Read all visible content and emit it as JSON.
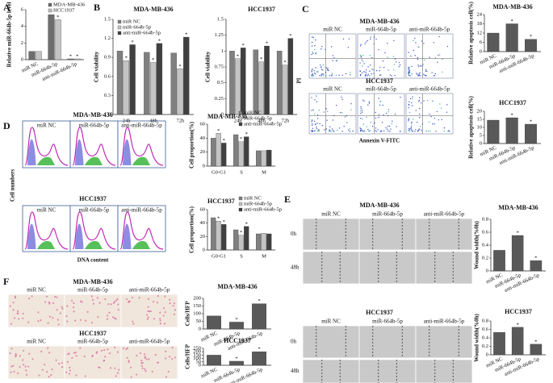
{
  "letters": [
    "A",
    "B",
    "C",
    "D",
    "E",
    "F"
  ],
  "image_panels": [
    {
      "titles": [
        "MDA-MB-436",
        "HCC1937"
      ],
      "columns": [
        "miR NC",
        "miR-664b-5p",
        "anti-miR-664b-5p"
      ],
      "ylabel": "PI",
      "xlabel": "Annexin V-FITC"
    },
    {
      "titles": [
        "MDA-MB-436",
        "HCC1937"
      ],
      "columns": [
        "miR NC",
        "miR-664b-5p",
        "anti-miR-664b-5p"
      ],
      "ylabel": "Cell numbers",
      "xlabel": "DNA content"
    },
    {
      "titles": [
        "MDA-MB-436",
        "HCC1937"
      ],
      "columns": [
        "miR NC",
        "miR-664b-5p",
        "anti-miR-664b-5p"
      ],
      "rows": [
        "0h",
        "48h"
      ]
    },
    {
      "titles": [
        "MDA-MB-436",
        "HCC1937"
      ],
      "columns": [
        "miR NC",
        "miR-664b-5p",
        "anti-miR-664b-5p"
      ]
    }
  ],
  "chart_data": [
    {
      "type": "bar",
      "ylabel": "Relative miR-664b-5p level",
      "categories": [
        "miR NC",
        "miR-664b-5p",
        "anti-miR-664b-5p"
      ],
      "series": [
        {
          "name": "MDA-MB-436",
          "color": "#6d6d6d",
          "values": [
            1,
            5.4,
            0.1
          ]
        },
        {
          "name": "HCC1937",
          "color": "#c4c4c4",
          "values": [
            1,
            4.8,
            0.1
          ]
        }
      ],
      "ylim": [
        0,
        6
      ],
      "yticks": [
        0,
        2,
        4,
        6
      ],
      "annotations": [
        {
          "text": "*",
          "series": 0,
          "index": 1
        },
        {
          "text": "*",
          "series": 1,
          "index": 1
        },
        {
          "text": "*",
          "series": 0,
          "index": 2
        },
        {
          "text": "*",
          "series": 1,
          "index": 2
        }
      ]
    },
    {
      "type": "bar",
      "title": "MDA-MB-436",
      "ylabel": "Cell viability",
      "categories": [
        "24h",
        "48h",
        "72h"
      ],
      "series": [
        {
          "name": "miR NC",
          "color": "#808080",
          "values": [
            1.0,
            0.98,
            0.97
          ]
        },
        {
          "name": "miR-664b-5p",
          "color": "#c4c4c4",
          "values": [
            0.85,
            0.82,
            0.72
          ]
        },
        {
          "name": "anti-miR-664b-5p",
          "color": "#404040",
          "values": [
            1.1,
            1.12,
            1.22
          ]
        }
      ],
      "ylim": [
        0,
        1.5
      ],
      "yticks": [
        0,
        0.3,
        0.6,
        0.9,
        1.2,
        1.5
      ],
      "annotations": [
        {
          "text": "*",
          "series": 1,
          "index": 0
        },
        {
          "text": "*",
          "series": 1,
          "index": 1
        },
        {
          "text": "*",
          "series": 1,
          "index": 2
        },
        {
          "text": "*",
          "series": 2,
          "index": 0
        },
        {
          "text": "*",
          "series": 2,
          "index": 1
        },
        {
          "text": "*",
          "series": 2,
          "index": 2
        }
      ]
    },
    {
      "type": "bar",
      "title": "HCC1937",
      "ylabel": "Cell viability",
      "categories": [
        "24h",
        "48h",
        "72h"
      ],
      "series": [
        {
          "name": "miR NC",
          "color": "#808080",
          "values": [
            1.0,
            1.02,
            1.0
          ]
        },
        {
          "name": "miR-664b-5p",
          "color": "#c4c4c4",
          "values": [
            0.88,
            0.83,
            0.78
          ]
        },
        {
          "name": "anti-miR-664b-5p",
          "color": "#404040",
          "values": [
            1.05,
            1.08,
            1.2
          ]
        }
      ],
      "ylim": [
        0,
        1.5
      ],
      "yticks": [
        0,
        0.25,
        0.5,
        0.75,
        1,
        1.25,
        1.5
      ],
      "annotations": [
        {
          "text": "*",
          "series": 1,
          "index": 0
        },
        {
          "text": "*",
          "series": 1,
          "index": 1
        },
        {
          "text": "*",
          "series": 1,
          "index": 2
        },
        {
          "text": "*",
          "series": 2,
          "index": 0
        },
        {
          "text": "*",
          "series": 2,
          "index": 1
        },
        {
          "text": "*",
          "series": 2,
          "index": 2
        }
      ]
    },
    {
      "type": "bar",
      "title": "MDA-MB-436",
      "ylabel": "Relative apoptosis cell(%)",
      "categories": [
        "miR NC",
        "miR-664b-5p",
        "anti-miR-664b-5p"
      ],
      "values": [
        12,
        18,
        8
      ],
      "color": "#595959",
      "ylim": [
        0,
        24
      ],
      "yticks": [
        0,
        6,
        12,
        18,
        24
      ],
      "annotations": [
        {
          "text": "*",
          "index": 1
        },
        {
          "text": "*",
          "index": 2
        }
      ]
    },
    {
      "type": "bar",
      "title": "HCC1937",
      "ylabel": "Relative apoptosis cell(%)",
      "categories": [
        "miR NC",
        "miR-664b-5p",
        "anti-miR-664b-5p"
      ],
      "values": [
        14.5,
        16,
        12
      ],
      "color": "#595959",
      "ylim": [
        0,
        20
      ],
      "yticks": [
        0,
        5,
        10,
        15,
        20
      ],
      "annotations": [
        {
          "text": "*",
          "index": 1
        },
        {
          "text": "*",
          "index": 2
        }
      ]
    },
    {
      "type": "bar",
      "title": "MDA-MB-436",
      "ylabel": "Cell proportion(%)",
      "categories": [
        "G0-G1",
        "S",
        "M"
      ],
      "series": [
        {
          "name": "miR NC",
          "color": "#808080",
          "values": [
            40,
            45,
            22
          ]
        },
        {
          "name": "miR-664b-5p",
          "color": "#c4c4c4",
          "values": [
            47,
            35,
            22
          ]
        },
        {
          "name": "anti-miR-664b-5p",
          "color": "#404040",
          "values": [
            33,
            42,
            23
          ]
        }
      ],
      "ylim": [
        0,
        60
      ],
      "yticks": [
        0,
        20,
        40,
        60
      ],
      "annotations": [
        {
          "text": "*",
          "series": 1,
          "index": 0
        },
        {
          "text": "*",
          "series": 2,
          "index": 0
        },
        {
          "text": "*",
          "series": 1,
          "index": 1
        },
        {
          "text": "*",
          "series": 2,
          "index": 1
        }
      ]
    },
    {
      "type": "bar",
      "title": "HCC1937",
      "ylabel": "Cell proportion(%)",
      "categories": [
        "G0-G1",
        "S",
        "M"
      ],
      "series": [
        {
          "name": "miR NC",
          "color": "#808080",
          "values": [
            48,
            30,
            24
          ]
        },
        {
          "name": "miR-664b-5p",
          "color": "#c4c4c4",
          "values": [
            43,
            22,
            25
          ]
        },
        {
          "name": "anti-miR-664b-5p",
          "color": "#404040",
          "values": [
            38,
            35,
            24
          ]
        }
      ],
      "ylim": [
        0,
        60
      ],
      "yticks": [
        0,
        20,
        40,
        60
      ],
      "annotations": [
        {
          "text": "*",
          "series": 1,
          "index": 0
        },
        {
          "text": "*",
          "series": 2,
          "index": 0
        },
        {
          "text": "*",
          "series": 1,
          "index": 1
        },
        {
          "text": "*",
          "series": 2,
          "index": 1
        }
      ]
    },
    {
      "type": "bar",
      "title": "MDA-MB-436",
      "ylabel": "Wound width(%0h)",
      "categories": [
        "miR NC",
        "miR-664b-5p",
        "anti-miR-664b-5p"
      ],
      "values": [
        0.32,
        0.55,
        0.16
      ],
      "color": "#595959",
      "ylim": [
        0,
        0.8
      ],
      "yticks": [
        0,
        0.2,
        0.4,
        0.6,
        0.8
      ],
      "annotations": [
        {
          "text": "*",
          "index": 1
        },
        {
          "text": "*",
          "index": 2
        }
      ]
    },
    {
      "type": "bar",
      "title": "HCC1937",
      "ylabel": "Wound width(%0h)",
      "categories": [
        "miR NC",
        "miR-664b-5p",
        "anti-miR-664b-5p"
      ],
      "values": [
        0.53,
        0.65,
        0.25
      ],
      "color": "#595959",
      "ylim": [
        0,
        0.8
      ],
      "yticks": [
        0,
        0.2,
        0.4,
        0.6,
        0.8
      ],
      "annotations": [
        {
          "text": "*",
          "index": 1
        },
        {
          "text": "*",
          "index": 2
        }
      ]
    },
    {
      "type": "bar",
      "title": "MDA-MB-436",
      "ylabel": "Cells/HFP",
      "categories": [
        "miR NC",
        "miR-664b-5p",
        "anti-miR-664b-5p"
      ],
      "values": [
        85,
        45,
        165
      ],
      "color": "#595959",
      "ylim": [
        0,
        200
      ],
      "yticks": [
        0,
        50,
        100,
        150,
        200
      ],
      "annotations": [
        {
          "text": "*",
          "index": 1
        },
        {
          "text": "*",
          "index": 2
        }
      ]
    },
    {
      "type": "bar",
      "title": "HCC1937",
      "ylabel": "Cells/HFP",
      "categories": [
        "miR NC",
        "miR-664b-5p",
        "anti-miR-664b-5p"
      ],
      "values": [
        150,
        60,
        200
      ],
      "color": "#595959",
      "ylim": [
        0,
        250
      ],
      "yticks": [
        0,
        50,
        100,
        150,
        200,
        250
      ],
      "annotations": [
        {
          "text": "*",
          "index": 1
        },
        {
          "text": "*",
          "index": 2
        }
      ]
    }
  ]
}
